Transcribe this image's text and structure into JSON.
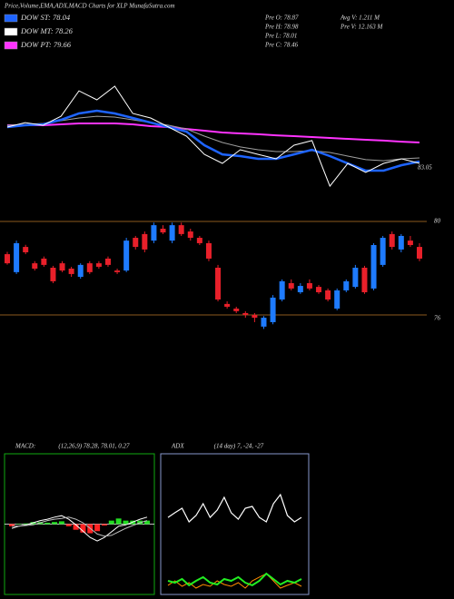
{
  "header": {
    "title": "Price,Volume,EMA,ADX,MACD Charts for XLP MunafaSutra.com",
    "legend": [
      {
        "label": "DOW ST: 78.04",
        "color": "#1e64ff"
      },
      {
        "label": "DOW MT: 78.26",
        "color": "#ffffff"
      },
      {
        "label": "DOW PT: 79.66",
        "color": "#ff33ff"
      }
    ],
    "stats_left": [
      "Pre  O: 78.87",
      "Pre  H: 78.98",
      "Pre  L: 78.01",
      "Pre  C: 78.46"
    ],
    "stats_right": [
      "Avg V: 1.211 M",
      "Pre  V: 12.163 M"
    ]
  },
  "chart_data": [
    {
      "type": "line",
      "last_label": "83.05",
      "ylim": [
        0,
        100
      ],
      "series": [
        {
          "color": "#ff33ff",
          "width": 2,
          "values": [
            55.0,
            55.0,
            55.0,
            55.7,
            56.4,
            56.4,
            56.4,
            55.7,
            54.3,
            53.6,
            52.1,
            50.7,
            49.3,
            48.6,
            47.9,
            47.1,
            46.4,
            45.7,
            45.0,
            44.3,
            43.6,
            42.9,
            42.1,
            41.4
          ]
        },
        {
          "color": "#a0a0a0",
          "width": 1,
          "values": [
            55.0,
            55.7,
            56.4,
            58.6,
            60.7,
            62.1,
            61.4,
            59.3,
            57.1,
            55.0,
            52.1,
            46.4,
            41.4,
            37.9,
            35.7,
            34.3,
            34.3,
            35.0,
            33.6,
            30.7,
            27.9,
            27.1,
            28.6,
            29.3
          ]
        },
        {
          "color": "#1e64ff",
          "width": 2.5,
          "values": [
            53.6,
            55.0,
            55.7,
            59.3,
            64.3,
            66.4,
            64.3,
            60.7,
            57.1,
            53.6,
            50.0,
            39.3,
            32.1,
            30.7,
            28.6,
            28.6,
            32.1,
            35.7,
            30.7,
            25.0,
            19.3,
            19.3,
            23.6,
            26.4
          ]
        },
        {
          "color": "#ffffff",
          "width": 1,
          "values": [
            53.6,
            57.1,
            55.0,
            62.1,
            82.1,
            75.0,
            85.7,
            64.3,
            60.7,
            53.6,
            46.4,
            32.1,
            25.0,
            35.7,
            32.1,
            28.6,
            39.3,
            42.9,
            7.1,
            25.0,
            17.9,
            25.0,
            28.6,
            25.0
          ]
        }
      ]
    },
    {
      "type": "candlestick",
      "ylim": [
        76,
        80
      ],
      "yticks": [
        76,
        80
      ],
      "grid": true,
      "grid_color": "#8b5a1e",
      "up_color": "#1e7bff",
      "down_color": "#e8202a",
      "open": [
        78.6,
        77.83,
        78.91,
        78.21,
        78.41,
        78.02,
        78.21,
        77.98,
        77.63,
        78.21,
        78.21,
        78.41,
        77.9,
        77.9,
        79.3,
        79.46,
        79.18,
        79.69,
        79.18,
        79.84,
        79.57,
        79.3,
        79.07,
        78.02,
        76.47,
        76.27,
        76.08,
        76.0,
        75.5,
        75.69,
        76.66,
        77.36,
        76.97,
        77.36,
        77.2,
        77.05,
        76.27,
        77.05,
        77.2,
        78.02,
        77.13,
        78.14,
        79.46,
        78.8,
        79.18,
        78.91
      ],
      "high": [
        78.7,
        79.18,
        79.0,
        78.3,
        78.5,
        78.1,
        78.3,
        78.06,
        78.21,
        78.3,
        78.3,
        78.5,
        77.98,
        79.3,
        79.38,
        79.57,
        79.95,
        79.84,
        79.95,
        79.95,
        79.69,
        79.38,
        79.18,
        78.14,
        76.58,
        76.35,
        76.16,
        76.08,
        75.95,
        76.85,
        77.52,
        77.52,
        77.36,
        77.52,
        77.28,
        77.13,
        77.13,
        77.52,
        78.14,
        78.1,
        79.07,
        79.38,
        79.57,
        79.46,
        79.38,
        79.07
      ],
      "low": [
        78.15,
        77.75,
        78.6,
        77.9,
        78.06,
        77.36,
        77.83,
        77.63,
        77.55,
        77.75,
        77.98,
        78.06,
        77.75,
        77.83,
        78.8,
        78.68,
        79.07,
        79.46,
        79.07,
        79.38,
        79.18,
        78.99,
        78.3,
        76.58,
        76.27,
        76.08,
        75.88,
        75.69,
        75.4,
        75.6,
        76.58,
        77.05,
        76.9,
        77.05,
        76.9,
        76.58,
        76.2,
        76.97,
        77.13,
        76.9,
        77.05,
        78.06,
        78.8,
        78.68,
        78.91,
        78.3
      ],
      "close": [
        78.21,
        79.07,
        78.68,
        77.98,
        78.14,
        77.44,
        77.9,
        77.75,
        78.14,
        77.83,
        78.06,
        78.14,
        77.83,
        79.18,
        78.91,
        78.8,
        79.84,
        79.53,
        79.84,
        79.46,
        79.3,
        79.07,
        78.41,
        76.66,
        76.35,
        76.16,
        76.0,
        75.88,
        75.88,
        76.74,
        77.44,
        77.13,
        77.24,
        77.13,
        76.97,
        76.66,
        77.05,
        77.44,
        78.02,
        76.97,
        78.99,
        79.3,
        78.91,
        79.38,
        78.99,
        78.41
      ]
    },
    {
      "type": "macd",
      "title": "MACD:",
      "params": "(12,26,9) 78.28, 78.01, 0.27",
      "ylim": [
        -1,
        1
      ],
      "border": "#11aa11",
      "zero_color": "#ffffff",
      "histogram": {
        "up_color": "#22dd22",
        "down_color": "#ff2222",
        "values": [
          -0.03,
          0,
          0.01,
          0.03,
          0.03,
          0.02,
          0.03,
          0.04,
          -0.03,
          -0.08,
          -0.12,
          -0.13,
          -0.1,
          -0.02,
          0.05,
          0.08,
          0.05,
          0.05,
          0.05,
          0.05
        ]
      },
      "series": [
        {
          "color": "#ffffff",
          "width": 1,
          "values": [
            -0.06,
            -0.03,
            -0.01,
            0.02,
            0.05,
            0.07,
            0.1,
            0.12,
            0.07,
            -0.01,
            -0.1,
            -0.19,
            -0.24,
            -0.19,
            -0.11,
            -0.03,
            -0.01,
            0.03,
            0.07,
            0.1
          ]
        },
        {
          "color": "#bbbbbb",
          "width": 1,
          "values": [
            -0.03,
            -0.03,
            -0.02,
            -0.01,
            0.02,
            0.05,
            0.07,
            0.08,
            0.1,
            0.07,
            0.02,
            -0.06,
            -0.14,
            -0.17,
            -0.16,
            -0.11,
            -0.06,
            -0.02,
            0.02,
            0.05
          ]
        }
      ]
    },
    {
      "type": "adx",
      "title": "ADX",
      "params": "(14 day) 7, -24, -27",
      "ylim": [
        0,
        100
      ],
      "border": "#8899cc",
      "series": [
        {
          "color": "#ffffff",
          "width": 1.2,
          "values": [
            54.8,
            58.1,
            61.3,
            51.6,
            56.1,
            64.5,
            54.8,
            60.0,
            69.0,
            58.1,
            53.5,
            61.3,
            62.6,
            54.8,
            51.6,
            64.5,
            71.0,
            56.1,
            51.6,
            54.8
          ]
        },
        {
          "color": "#ff8c00",
          "width": 1,
          "values": [
            6.5,
            9.7,
            5.8,
            8.4,
            4.5,
            7.1,
            5.8,
            9.7,
            7.1,
            5.8,
            8.4,
            4.5,
            9.7,
            12.3,
            14.8,
            9.7,
            4.5,
            6.5,
            8.4,
            5.8
          ]
        },
        {
          "color": "#22ee22",
          "width": 2,
          "values": [
            9.7,
            8.4,
            11.0,
            6.5,
            9.7,
            12.3,
            8.4,
            7.1,
            11.0,
            9.7,
            12.3,
            8.4,
            6.5,
            9.7,
            14.8,
            11.0,
            7.1,
            9.7,
            8.4,
            11.0
          ]
        }
      ]
    }
  ]
}
